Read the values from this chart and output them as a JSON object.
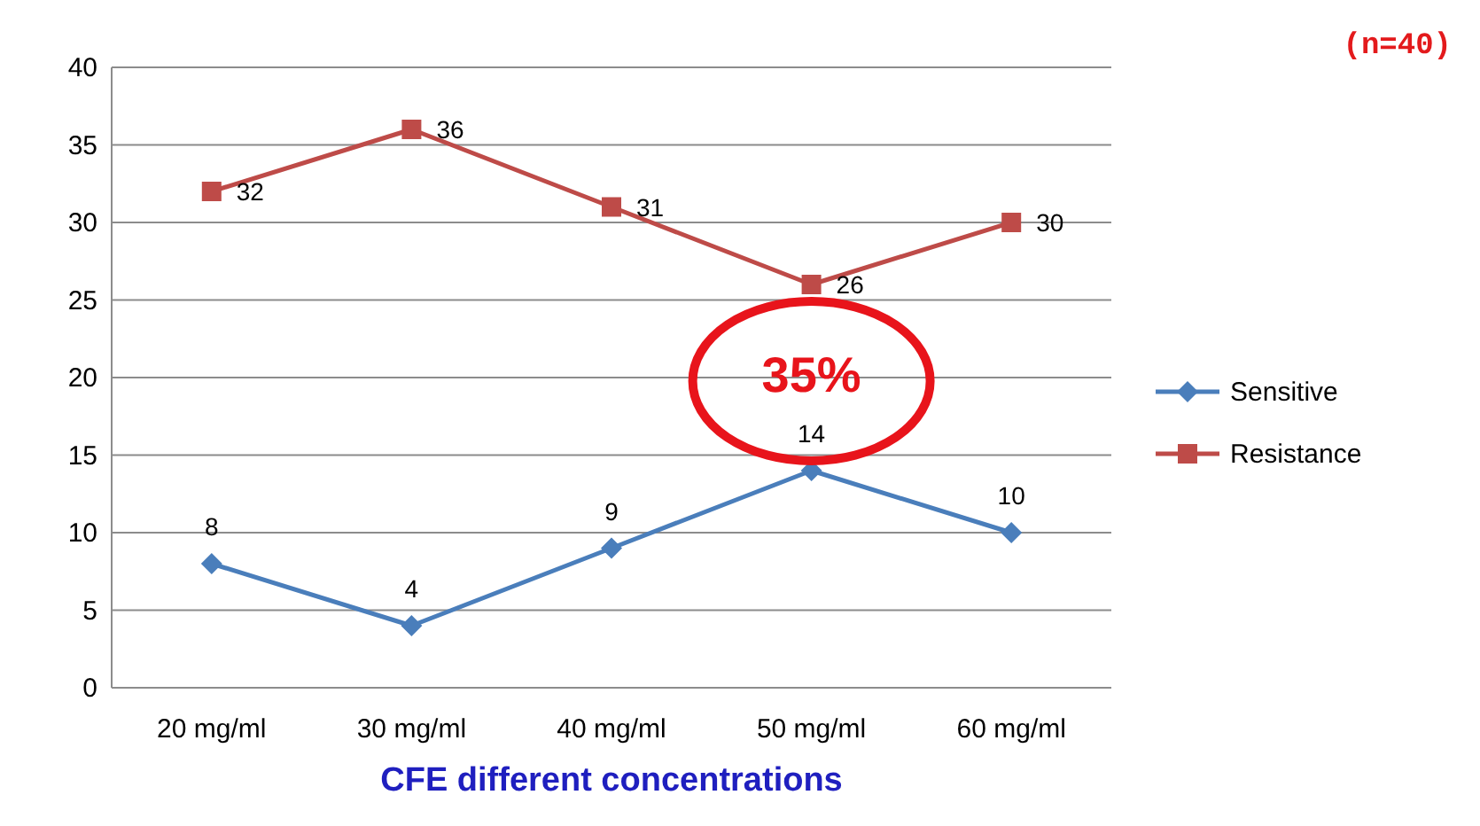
{
  "chart_data": {
    "type": "line",
    "xlabel": "CFE different concentrations",
    "categories": [
      "20 mg/ml",
      "30 mg/ml",
      "40 mg/ml",
      "50 mg/ml",
      "60 mg/ml"
    ],
    "series": [
      {
        "name": "Sensitive",
        "color": "#4a7ebb",
        "marker": "diamond",
        "values": [
          8,
          4,
          9,
          14,
          10
        ]
      },
      {
        "name": "Resistance",
        "color": "#be4b48",
        "marker": "square",
        "values": [
          32,
          36,
          31,
          26,
          30
        ]
      }
    ],
    "ylim": [
      0,
      40
    ],
    "yticks": [
      0,
      5,
      10,
      15,
      20,
      25,
      30,
      35,
      40
    ],
    "grid": "y",
    "legend": "right",
    "data_labels": true,
    "annotations": [
      "(n=40)",
      "35%"
    ]
  }
}
